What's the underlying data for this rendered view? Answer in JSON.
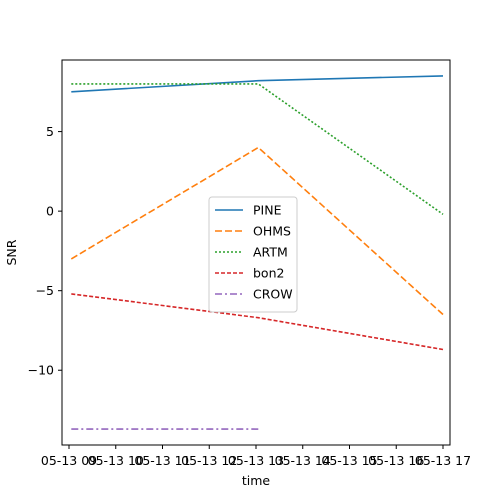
{
  "chart_data": {
    "type": "line",
    "title": "",
    "xlabel": "time",
    "ylabel": "SNR",
    "x": [
      "05-13 09",
      "05-13 10",
      "05-13 11",
      "05-13 12",
      "05-13 13",
      "05-13 14",
      "05-13 15",
      "05-13 16",
      "05-13 17"
    ],
    "x_tick_labels": [
      "05-13 09",
      "05-13 10",
      "05-13 11",
      "05-13 12",
      "05-13 13",
      "05-13 14",
      "05-13 15",
      "05-13 16",
      "05-13 17"
    ],
    "x_hours": [
      9,
      10,
      11,
      12,
      13,
      14,
      15,
      16,
      17
    ],
    "xlim": [
      8.85,
      17.15
    ],
    "ylim": [
      -14.7,
      9.5
    ],
    "y_ticks": [
      5,
      0,
      -5,
      -10
    ],
    "y_tick_labels": [
      "5",
      "0",
      "−5",
      "−10"
    ],
    "grid": false,
    "legend_position": "center",
    "series": [
      {
        "name": "PINE",
        "color": "#1f77b4",
        "dash": "solid",
        "x": [
          9.05,
          13.05,
          17.0
        ],
        "y": [
          7.5,
          8.2,
          8.5
        ]
      },
      {
        "name": "OHMS",
        "color": "#ff7f0e",
        "dash": "dashed",
        "x": [
          9.05,
          13.05,
          17.0
        ],
        "y": [
          -3.0,
          4.0,
          -6.5
        ]
      },
      {
        "name": "ARTM",
        "color": "#2ca02c",
        "dash": "dotted",
        "x": [
          9.05,
          13.05,
          17.0
        ],
        "y": [
          8.0,
          8.0,
          -0.2
        ]
      },
      {
        "name": "bon2",
        "color": "#d62728",
        "dash": "densedash",
        "x": [
          9.05,
          13.05,
          17.0
        ],
        "y": [
          -5.2,
          -6.7,
          -8.7
        ]
      },
      {
        "name": "CROW",
        "color": "#9467bd",
        "dash": "dashdot",
        "x": [
          9.05,
          13.05
        ],
        "y": [
          -13.7,
          -13.7
        ]
      }
    ]
  }
}
